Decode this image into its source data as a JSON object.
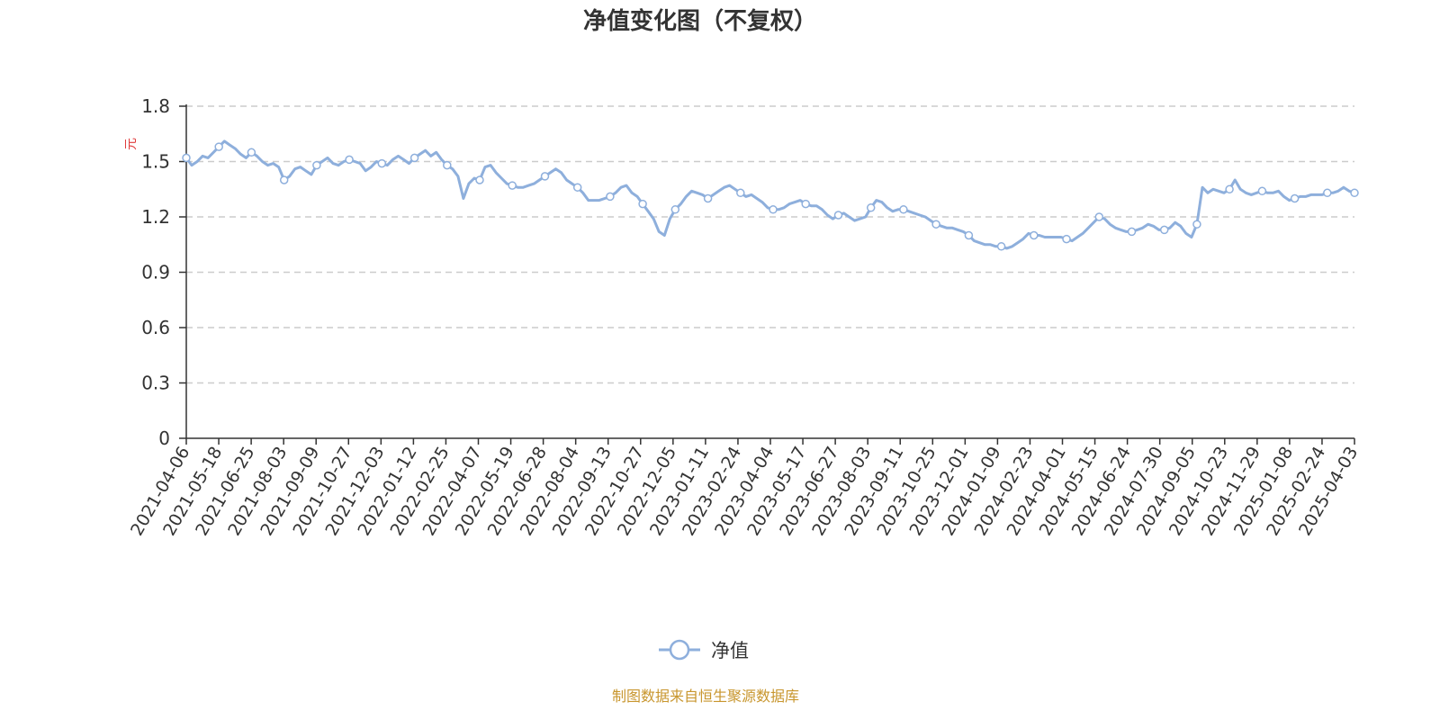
{
  "chart_data": {
    "type": "line",
    "title": "净值变化图（不复权）",
    "ylabel": "元",
    "ylim": [
      0,
      1.8
    ],
    "yticks": [
      "0",
      "0.3",
      "0.6",
      "0.9",
      "1.2",
      "1.5",
      "1.8"
    ],
    "grid": true,
    "legend_placement": "bottom-center",
    "x_tick_labels": [
      "2021-04-06",
      "2021-05-18",
      "2021-06-25",
      "2021-08-03",
      "2021-09-09",
      "2021-10-27",
      "2021-12-03",
      "2022-01-12",
      "2022-02-25",
      "2022-04-07",
      "2022-05-19",
      "2022-06-28",
      "2022-08-04",
      "2022-09-13",
      "2022-10-27",
      "2022-12-05",
      "2023-01-11",
      "2023-02-24",
      "2023-04-04",
      "2023-05-17",
      "2023-06-27",
      "2023-08-03",
      "2023-09-11",
      "2023-10-25",
      "2023-12-01",
      "2024-01-09",
      "2024-02-23",
      "2024-04-01",
      "2024-05-15",
      "2024-06-24",
      "2024-07-30",
      "2024-09-05",
      "2024-10-23",
      "2024-11-29",
      "2025-01-08",
      "2025-02-24",
      "2025-04-03"
    ],
    "series": [
      {
        "name": "净值",
        "color": "#8eafdc",
        "values": [
          1.52,
          1.48,
          1.5,
          1.53,
          1.52,
          1.55,
          1.58,
          1.61,
          1.59,
          1.57,
          1.54,
          1.52,
          1.55,
          1.53,
          1.5,
          1.48,
          1.49,
          1.47,
          1.4,
          1.42,
          1.46,
          1.47,
          1.45,
          1.43,
          1.48,
          1.5,
          1.52,
          1.49,
          1.48,
          1.5,
          1.51,
          1.5,
          1.49,
          1.45,
          1.47,
          1.5,
          1.49,
          1.48,
          1.51,
          1.53,
          1.51,
          1.49,
          1.52,
          1.54,
          1.56,
          1.53,
          1.55,
          1.51,
          1.48,
          1.46,
          1.42,
          1.3,
          1.38,
          1.41,
          1.4,
          1.47,
          1.48,
          1.44,
          1.41,
          1.38,
          1.37,
          1.36,
          1.36,
          1.37,
          1.38,
          1.4,
          1.42,
          1.44,
          1.46,
          1.44,
          1.4,
          1.38,
          1.36,
          1.33,
          1.29,
          1.29,
          1.29,
          1.3,
          1.31,
          1.33,
          1.36,
          1.37,
          1.33,
          1.31,
          1.27,
          1.23,
          1.19,
          1.12,
          1.1,
          1.19,
          1.24,
          1.27,
          1.31,
          1.34,
          1.33,
          1.32,
          1.3,
          1.32,
          1.34,
          1.36,
          1.37,
          1.35,
          1.33,
          1.31,
          1.32,
          1.3,
          1.28,
          1.25,
          1.24,
          1.24,
          1.25,
          1.27,
          1.28,
          1.29,
          1.27,
          1.26,
          1.26,
          1.24,
          1.21,
          1.19,
          1.21,
          1.22,
          1.2,
          1.18,
          1.19,
          1.2,
          1.25,
          1.29,
          1.28,
          1.25,
          1.23,
          1.24,
          1.24,
          1.23,
          1.22,
          1.21,
          1.2,
          1.18,
          1.16,
          1.15,
          1.14,
          1.14,
          1.13,
          1.12,
          1.1,
          1.07,
          1.06,
          1.05,
          1.05,
          1.04,
          1.04,
          1.03,
          1.04,
          1.06,
          1.08,
          1.11,
          1.1,
          1.1,
          1.09,
          1.09,
          1.09,
          1.09,
          1.08,
          1.07,
          1.09,
          1.11,
          1.14,
          1.17,
          1.2,
          1.19,
          1.16,
          1.14,
          1.13,
          1.12,
          1.12,
          1.13,
          1.14,
          1.16,
          1.15,
          1.13,
          1.13,
          1.14,
          1.17,
          1.15,
          1.11,
          1.09,
          1.16,
          1.36,
          1.33,
          1.35,
          1.34,
          1.33,
          1.35,
          1.4,
          1.35,
          1.33,
          1.32,
          1.33,
          1.34,
          1.33,
          1.33,
          1.34,
          1.31,
          1.29,
          1.3,
          1.31,
          1.31,
          1.32,
          1.32,
          1.32,
          1.33,
          1.33,
          1.34,
          1.36,
          1.34,
          1.33
        ]
      }
    ]
  },
  "legend": {
    "label": "净值"
  },
  "footer": {
    "source": "制图数据来自恒生聚源数据库",
    "source_color": "#c8962e"
  },
  "unit_color": "#e03c3c"
}
